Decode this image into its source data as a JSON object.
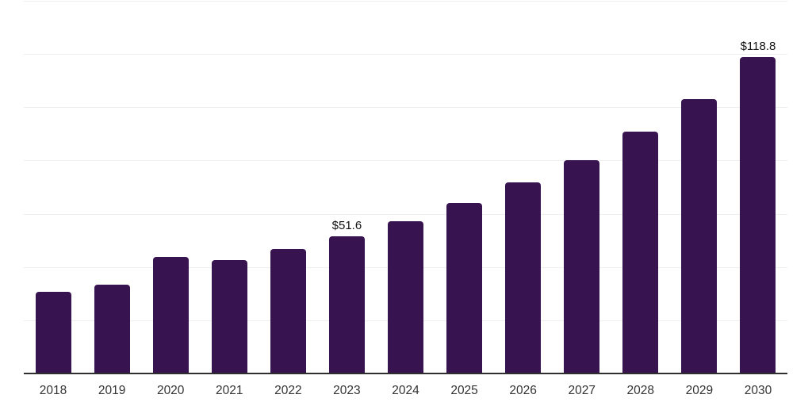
{
  "chart_data": {
    "type": "bar",
    "title": "",
    "xlabel": "",
    "ylabel": "",
    "categories": [
      "2018",
      "2019",
      "2020",
      "2021",
      "2022",
      "2023",
      "2024",
      "2025",
      "2026",
      "2027",
      "2028",
      "2029",
      "2030"
    ],
    "values": [
      30.8,
      33.5,
      43.8,
      42.5,
      46.8,
      51.6,
      57.3,
      64.1,
      71.7,
      80.0,
      90.9,
      103.2,
      118.8
    ],
    "annotations": [
      {
        "index": 5,
        "text": "$51.6"
      },
      {
        "index": 12,
        "text": "$118.8"
      }
    ],
    "ylim": [
      0,
      140
    ],
    "gridline_step": 20,
    "grid": "horizontal-only",
    "y_tick_labels_visible": false,
    "legend_position": "none",
    "colors": {
      "bar": "#371450",
      "axis_line": "#2f2f2f",
      "gridline": "#efefef",
      "value_label_text": "#111111",
      "x_label_text": "#333333",
      "background": "#ffffff"
    }
  }
}
